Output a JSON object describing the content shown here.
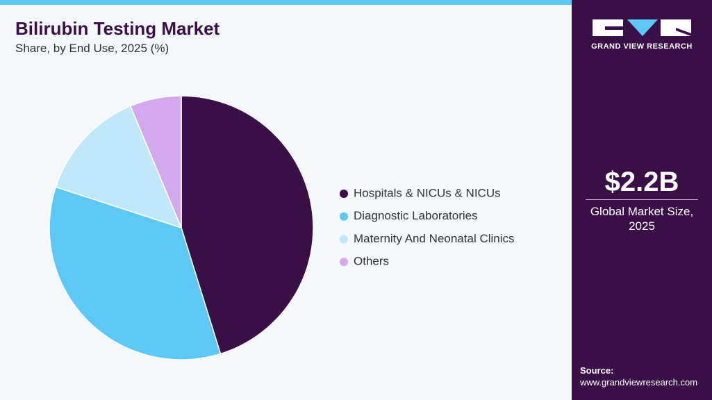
{
  "chart_data": {
    "type": "pie",
    "title": "Bilirubin Testing Market",
    "subtitle": "Share, by End Use, 2025 (%)",
    "categories": [
      "Hospitals & NICUs & NICUs",
      "Diagnostic Laboratories",
      "Maternity And Neonatal Clinics",
      "Others"
    ],
    "values": [
      45.2,
      34.8,
      13.7,
      6.3
    ],
    "colors": [
      "#3a0f47",
      "#5bc8f5",
      "#bfe9fa",
      "#d3a8ec"
    ]
  },
  "logo": {
    "text": "GRAND VIEW RESEARCH"
  },
  "market_size": {
    "value": "$2.2B",
    "label": "Global Market Size, 2025"
  },
  "source": {
    "label": "Source:",
    "url": "www.grandviewresearch.com"
  }
}
